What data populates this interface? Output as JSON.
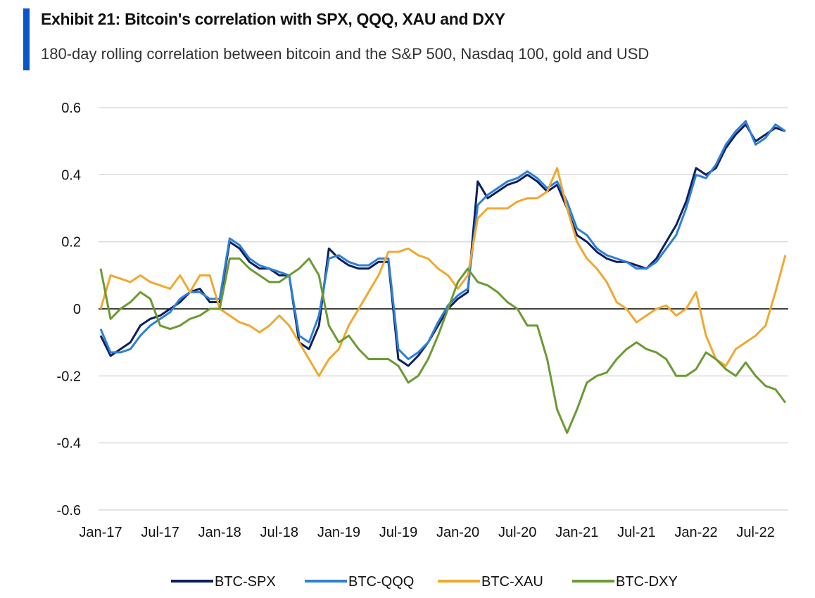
{
  "title": "Exhibit 21: Bitcoin's correlation with SPX, QQQ, XAU and DXY",
  "subtitle": "180-day rolling correlation between bitcoin and the S&P 500, Nasdaq 100, gold and USD",
  "accent_color": "#0a56c8",
  "chart_data": {
    "type": "line",
    "title": "Exhibit 21: Bitcoin's correlation with SPX, QQQ, XAU and DXY",
    "subtitle": "180-day rolling correlation between bitcoin and the S&P 500, Nasdaq 100, gold and USD",
    "xlabel": "",
    "ylabel": "",
    "ylim": [
      -0.6,
      0.6
    ],
    "yticks": [
      "0.6",
      "0.4",
      "0.2",
      "0",
      "-0.2",
      "-0.4",
      "-0.6"
    ],
    "yticks_values": [
      0.6,
      0.4,
      0.2,
      0,
      -0.2,
      -0.4,
      -0.6
    ],
    "xticks": [
      "Jan-17",
      "Jul-17",
      "Jan-18",
      "Jul-18",
      "Jan-19",
      "Jul-19",
      "Jan-20",
      "Jul-20",
      "Jan-21",
      "Jul-21",
      "Jan-22",
      "Jul-22"
    ],
    "grid": true,
    "legend": "bottom",
    "x": [
      "2017-01",
      "2017-02",
      "2017-03",
      "2017-04",
      "2017-05",
      "2017-06",
      "2017-07",
      "2017-08",
      "2017-09",
      "2017-10",
      "2017-11",
      "2017-12",
      "2018-01",
      "2018-02",
      "2018-03",
      "2018-04",
      "2018-05",
      "2018-06",
      "2018-07",
      "2018-08",
      "2018-09",
      "2018-10",
      "2018-11",
      "2018-12",
      "2019-01",
      "2019-02",
      "2019-03",
      "2019-04",
      "2019-05",
      "2019-06",
      "2019-07",
      "2019-08",
      "2019-09",
      "2019-10",
      "2019-11",
      "2019-12",
      "2020-01",
      "2020-02",
      "2020-03",
      "2020-04",
      "2020-05",
      "2020-06",
      "2020-07",
      "2020-08",
      "2020-09",
      "2020-10",
      "2020-11",
      "2020-12",
      "2021-01",
      "2021-02",
      "2021-03",
      "2021-04",
      "2021-05",
      "2021-06",
      "2021-07",
      "2021-08",
      "2021-09",
      "2021-10",
      "2021-11",
      "2021-12",
      "2022-01",
      "2022-02",
      "2022-03",
      "2022-04",
      "2022-05",
      "2022-06",
      "2022-07",
      "2022-08",
      "2022-09",
      "2022-10"
    ],
    "series": [
      {
        "name": "BTC-SPX",
        "color": "#0d1f5c",
        "values": [
          -0.08,
          -0.14,
          -0.12,
          -0.1,
          -0.05,
          -0.03,
          -0.02,
          0.0,
          0.02,
          0.05,
          0.06,
          0.02,
          0.02,
          0.2,
          0.18,
          0.14,
          0.12,
          0.12,
          0.1,
          0.1,
          -0.1,
          -0.12,
          -0.05,
          0.18,
          0.15,
          0.13,
          0.12,
          0.12,
          0.14,
          0.14,
          -0.15,
          -0.17,
          -0.14,
          -0.1,
          -0.05,
          0.0,
          0.03,
          0.05,
          0.38,
          0.33,
          0.35,
          0.37,
          0.38,
          0.4,
          0.38,
          0.35,
          0.37,
          0.3,
          0.22,
          0.2,
          0.17,
          0.15,
          0.14,
          0.14,
          0.13,
          0.12,
          0.15,
          0.2,
          0.25,
          0.32,
          0.42,
          0.4,
          0.42,
          0.48,
          0.52,
          0.55,
          0.5,
          0.52,
          0.54,
          0.53
        ]
      },
      {
        "name": "BTC-QQQ",
        "color": "#2f7fd6",
        "values": [
          -0.06,
          -0.13,
          -0.13,
          -0.12,
          -0.08,
          -0.05,
          -0.03,
          -0.01,
          0.03,
          0.05,
          0.05,
          0.03,
          0.03,
          0.21,
          0.19,
          0.15,
          0.13,
          0.12,
          0.11,
          0.1,
          -0.08,
          -0.1,
          -0.02,
          0.15,
          0.16,
          0.14,
          0.13,
          0.13,
          0.15,
          0.15,
          -0.12,
          -0.15,
          -0.13,
          -0.1,
          -0.04,
          0.01,
          0.04,
          0.06,
          0.31,
          0.34,
          0.36,
          0.38,
          0.39,
          0.41,
          0.39,
          0.36,
          0.38,
          0.32,
          0.24,
          0.22,
          0.18,
          0.16,
          0.15,
          0.14,
          0.12,
          0.12,
          0.14,
          0.18,
          0.22,
          0.3,
          0.4,
          0.39,
          0.43,
          0.49,
          0.53,
          0.56,
          0.49,
          0.51,
          0.55,
          0.53
        ]
      },
      {
        "name": "BTC-XAU",
        "color": "#f0a830",
        "values": [
          0.0,
          0.1,
          0.09,
          0.08,
          0.1,
          0.08,
          0.07,
          0.06,
          0.1,
          0.05,
          0.1,
          0.1,
          0.0,
          -0.02,
          -0.04,
          -0.05,
          -0.07,
          -0.05,
          -0.02,
          -0.05,
          -0.1,
          -0.15,
          -0.2,
          -0.15,
          -0.12,
          -0.05,
          0.0,
          0.05,
          0.1,
          0.17,
          0.17,
          0.18,
          0.16,
          0.15,
          0.12,
          0.1,
          0.06,
          0.1,
          0.27,
          0.3,
          0.3,
          0.3,
          0.32,
          0.33,
          0.33,
          0.35,
          0.42,
          0.3,
          0.2,
          0.15,
          0.12,
          0.08,
          0.02,
          0.0,
          -0.04,
          -0.02,
          0.0,
          0.01,
          -0.02,
          0.0,
          0.05,
          -0.08,
          -0.15,
          -0.17,
          -0.12,
          -0.1,
          -0.08,
          -0.05,
          0.05,
          0.16
        ]
      },
      {
        "name": "BTC-DXY",
        "color": "#6b9a32",
        "values": [
          0.12,
          -0.03,
          0.0,
          0.02,
          0.05,
          0.03,
          -0.05,
          -0.06,
          -0.05,
          -0.03,
          -0.02,
          0.0,
          0.0,
          0.15,
          0.15,
          0.12,
          0.1,
          0.08,
          0.08,
          0.1,
          0.12,
          0.15,
          0.1,
          -0.05,
          -0.1,
          -0.08,
          -0.12,
          -0.15,
          -0.15,
          -0.15,
          -0.17,
          -0.22,
          -0.2,
          -0.15,
          -0.08,
          0.0,
          0.08,
          0.12,
          0.08,
          0.07,
          0.05,
          0.02,
          0.0,
          -0.05,
          -0.05,
          -0.15,
          -0.3,
          -0.37,
          -0.3,
          -0.22,
          -0.2,
          -0.19,
          -0.15,
          -0.12,
          -0.1,
          -0.12,
          -0.13,
          -0.15,
          -0.2,
          -0.2,
          -0.18,
          -0.13,
          -0.15,
          -0.18,
          -0.2,
          -0.16,
          -0.2,
          -0.23,
          -0.24,
          -0.28
        ]
      }
    ]
  }
}
